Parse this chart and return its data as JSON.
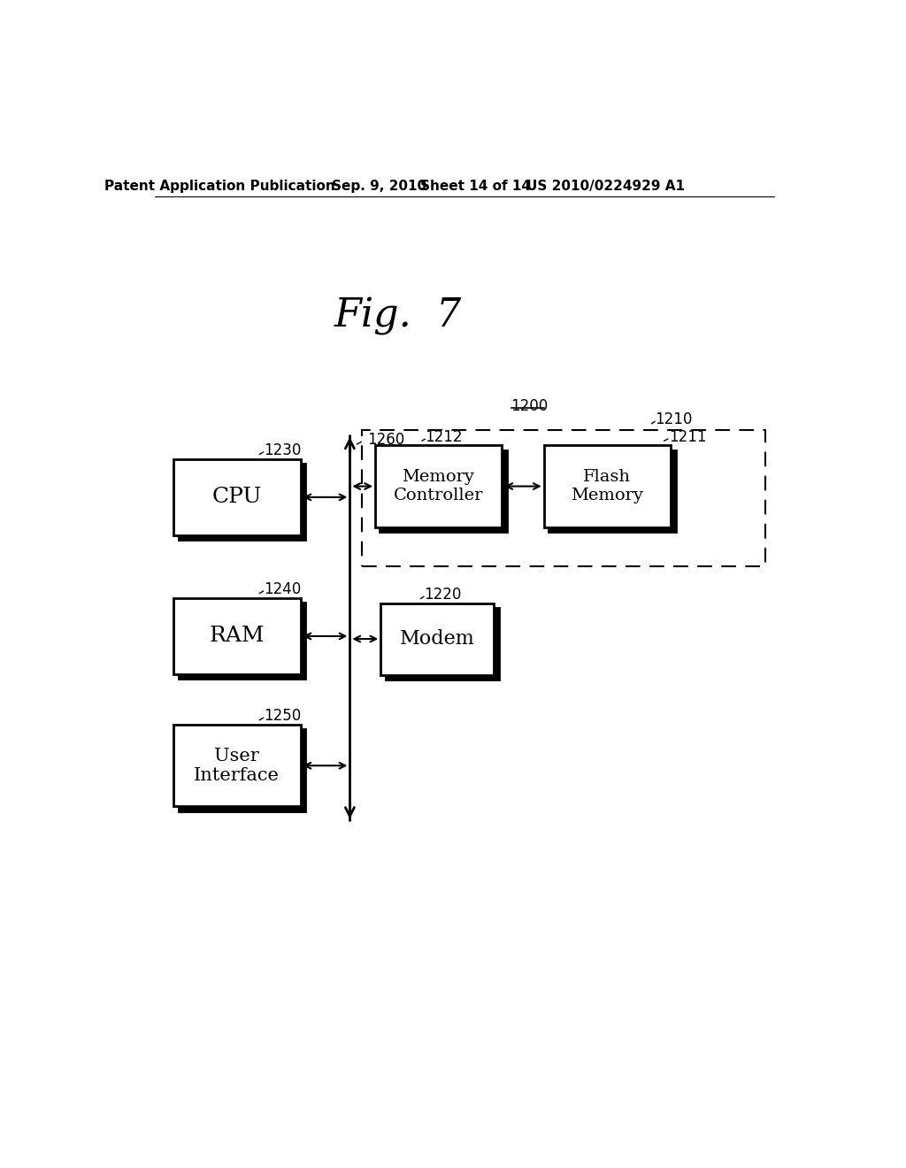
{
  "bg_color": "#ffffff",
  "title": "Fig.  7",
  "header_text": "Patent Application Publication",
  "header_date": "Sep. 9, 2010",
  "header_sheet": "Sheet 14 of 14",
  "header_patent": "US 2010/0224929 A1",
  "label_1200": "1200",
  "label_1260": "1260",
  "label_1230": "1230",
  "label_1240": "1240",
  "label_1250": "1250",
  "label_1210": "1210",
  "label_1211": "1211",
  "label_1212": "1212",
  "label_1220": "1220",
  "cpu_label": "CPU",
  "ram_label": "RAM",
  "ui_label": "User\nInterface",
  "mc_label": "Memory\nController",
  "fm_label": "Flash\nMemory",
  "modem_label": "Modem"
}
